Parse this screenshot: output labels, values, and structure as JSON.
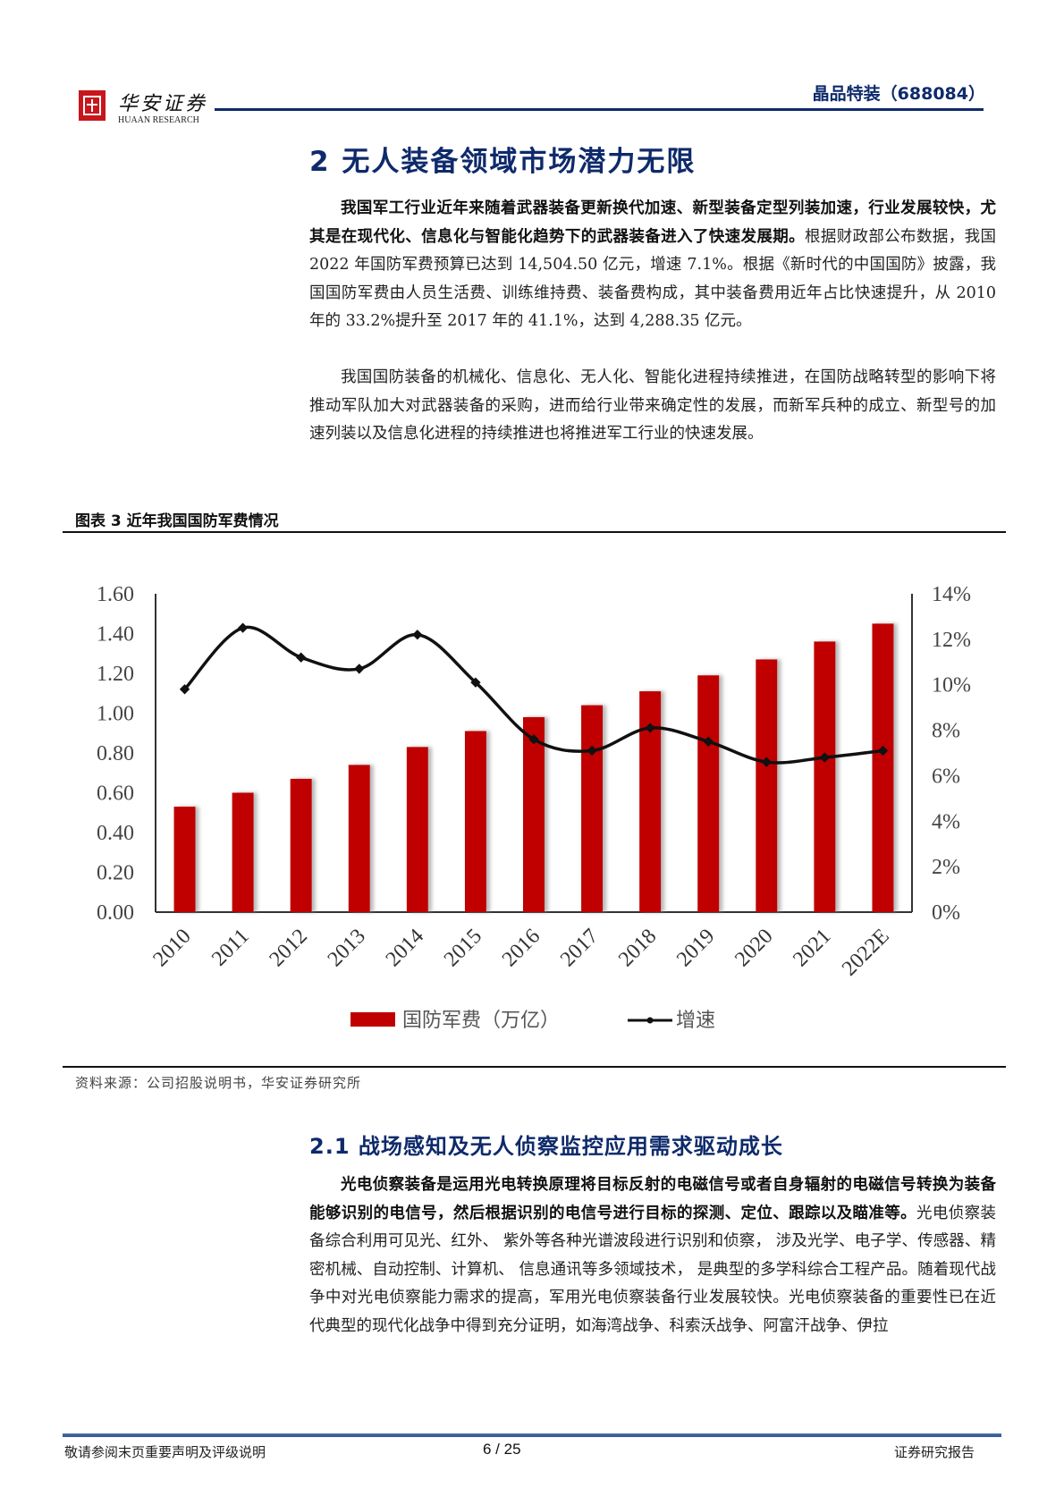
{
  "header": {
    "logo_cn": "华安证券",
    "logo_en": "HUAAN RESEARCH",
    "stock": "晶品特装（688084）"
  },
  "section": {
    "title": "2 无人装备领域市场潜力无限",
    "p1_bold": "我国军工行业近年来随着武器装备更新换代加速、新型装备定型列装加速，行业发展较快，尤其是在现代化、信息化与智能化趋势下的武器装备进入了快速发展期。",
    "p1_rest": "根据财政部公布数据，我国 2022 年国防军费预算已达到 14,504.50 亿元，增速 7.1%。根据《新时代的中国国防》披露，我国国防军费由人员生活费、训练维持费、装备费构成，其中装备费用近年占比快速提升，从 2010 年的 33.2%提升至 2017 年的 41.1%，达到 4,288.35 亿元。",
    "p2": "我国国防装备的机械化、信息化、无人化、智能化进程持续推进，在国防战略转型的影响下将推动军队加大对武器装备的采购，进而给行业带来确定性的发展，而新军兵种的成立、新型号的加速列装以及信息化进程的持续推进也将推进军工行业的快速发展。"
  },
  "figure": {
    "title": "图表 3 近年我国国防军费情况",
    "source": "资料来源：公司招股说明书，华安证券研究所"
  },
  "chart_data": {
    "type": "bar",
    "title": "近年我国国防军费情况",
    "categories": [
      "2010",
      "2011",
      "2012",
      "2013",
      "2014",
      "2015",
      "2016",
      "2017",
      "2018",
      "2019",
      "2020",
      "2021",
      "2022E"
    ],
    "series": [
      {
        "name": "国防军费（万亿）",
        "type": "bar",
        "axis": "left",
        "color": "#c00000",
        "values": [
          0.53,
          0.6,
          0.67,
          0.74,
          0.83,
          0.91,
          0.98,
          1.04,
          1.11,
          1.19,
          1.27,
          1.36,
          1.45
        ]
      },
      {
        "name": "增速",
        "type": "line",
        "axis": "right",
        "color": "#000000",
        "values": [
          9.8,
          12.5,
          11.2,
          10.7,
          12.2,
          10.1,
          7.6,
          7.1,
          8.1,
          7.5,
          6.6,
          6.8,
          7.1
        ]
      }
    ],
    "y_left": {
      "ticks": [
        "0.00",
        "0.20",
        "0.40",
        "0.60",
        "0.80",
        "1.00",
        "1.20",
        "1.40",
        "1.60"
      ],
      "range": [
        0,
        1.6
      ]
    },
    "y_right": {
      "ticks": [
        "0%",
        "2%",
        "4%",
        "6%",
        "8%",
        "10%",
        "12%",
        "14%"
      ],
      "range": [
        0,
        14
      ]
    },
    "xlabel": "",
    "ylabel": "",
    "grid": false,
    "legend_position": "bottom"
  },
  "subsection": {
    "title": "2.1 战场感知及无人侦察监控应用需求驱动成长",
    "p1_bold": "光电侦察装备是运用光电转换原理将目标反射的电磁信号或者自身辐射的电磁信号转换为装备能够识别的电信号，然后根据识别的电信号进行目标的探测、定位、跟踪以及瞄准等。",
    "p1_rest": "光电侦察装备综合利用可见光、红外、 紫外等各种光谱波段进行识别和侦察， 涉及光学、电子学、传感器、精密机械、自动控制、计算机、 信息通讯等多领域技术， 是典型的多学科综合工程产品。随着现代战争中对光电侦察能力需求的提高，军用光电侦察装备行业发展较快。光电侦察装备的重要性已在近代典型的现代化战争中得到充分证明，如海湾战争、科索沃战争、阿富汗战争、伊拉"
  },
  "footer": {
    "left": "敬请参阅末页重要声明及评级说明",
    "page": "6 / 25",
    "right": "证券研究报告"
  }
}
